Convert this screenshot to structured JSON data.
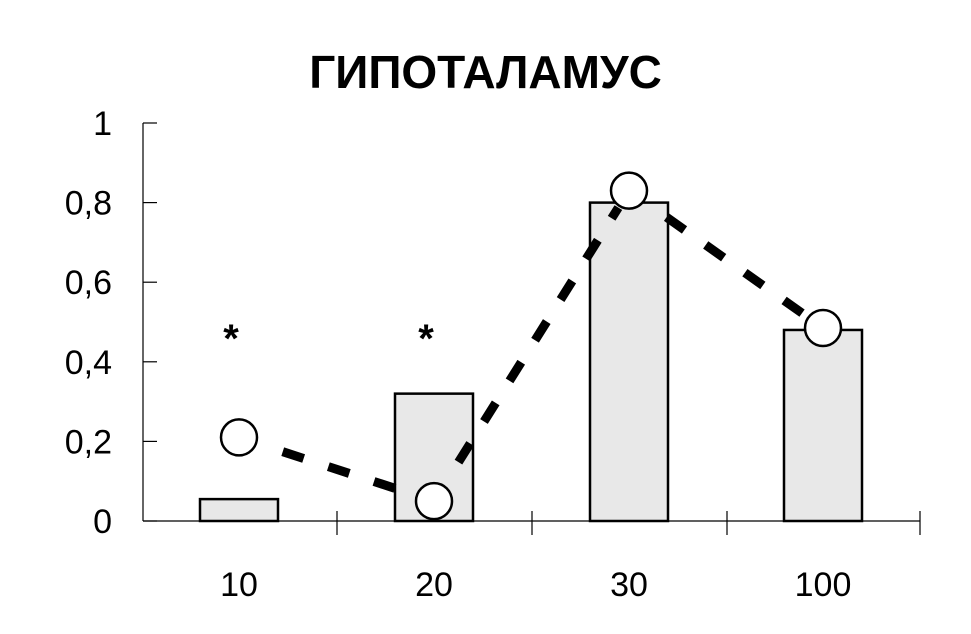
{
  "chart_data": {
    "type": "bar",
    "title": "ГИПОТАЛАМУС",
    "xlabel": "",
    "ylabel": "",
    "categories": [
      "10",
      "20",
      "30",
      "100"
    ],
    "ylim": [
      0,
      1
    ],
    "yticks": [
      "0",
      "0,2",
      "0,4",
      "0,6",
      "0,8",
      "1"
    ],
    "grid": false,
    "series": [
      {
        "kind": "bar",
        "values": [
          0.055,
          0.32,
          0.8,
          0.48
        ],
        "fill": "#e8e8e8",
        "stroke": "#000000"
      },
      {
        "kind": "line-markers",
        "style": "dashed",
        "marker": "open-circle",
        "values": [
          0.21,
          0.05,
          0.83,
          0.485
        ],
        "color": "#000000"
      }
    ],
    "annotations": [
      {
        "category": "10",
        "text": "*",
        "y": 0.5
      },
      {
        "category": "20",
        "text": "*",
        "y": 0.5
      }
    ]
  }
}
